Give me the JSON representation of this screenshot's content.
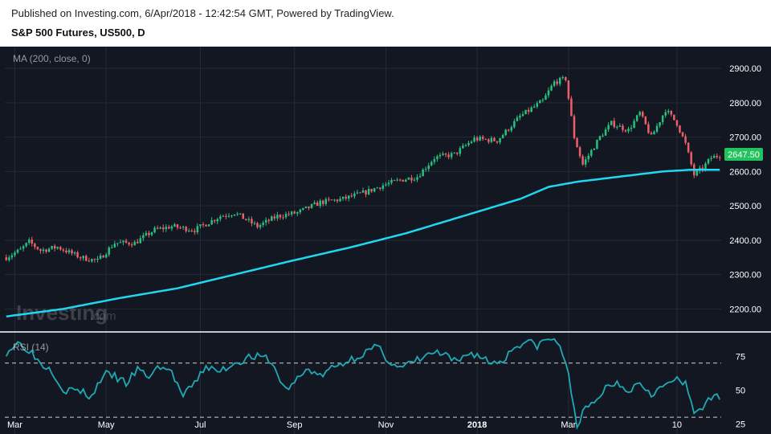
{
  "header": {
    "published": "Published on Investing.com, 6/Apr/2018 - 12:42:54 GMT, Powered by TradingView.",
    "symbol": "S&P 500 Futures, US500, D"
  },
  "watermark": {
    "brand": "Investing",
    "suffix": ".com"
  },
  "colors": {
    "background": "#131722",
    "up": "#26c281",
    "down": "#ef5f6b",
    "ma": "#21d7f0",
    "rsi": "#1fa9b5",
    "price_label_bg": "#22c35e",
    "axis_text": "#ffffff",
    "grid": "#252a36"
  },
  "chart_data": [
    {
      "type": "candlestick",
      "title": "S&P 500 Futures, US500, D",
      "indicator_label": "MA (200, close, 0)",
      "ylim": [
        2140,
        2940
      ],
      "y_ticks": [
        "2900.00",
        "2800.00",
        "2700.00",
        "2600.00",
        "2500.00",
        "2400.00",
        "2300.00",
        "2200.00"
      ],
      "x_ticks": [
        "Mar",
        "May",
        "Jul",
        "Sep",
        "Nov",
        "2018",
        "Mar",
        "10"
      ],
      "last_price": "2647.50",
      "price_anchors": [
        [
          0,
          2350
        ],
        [
          5,
          2372
        ],
        [
          8,
          2395
        ],
        [
          12,
          2370
        ],
        [
          18,
          2380
        ],
        [
          26,
          2350
        ],
        [
          32,
          2340
        ],
        [
          38,
          2392
        ],
        [
          45,
          2392
        ],
        [
          52,
          2430
        ],
        [
          58,
          2440
        ],
        [
          66,
          2430
        ],
        [
          75,
          2470
        ],
        [
          80,
          2480
        ],
        [
          88,
          2440
        ],
        [
          95,
          2470
        ],
        [
          102,
          2480
        ],
        [
          110,
          2510
        ],
        [
          118,
          2520
        ],
        [
          126,
          2540
        ],
        [
          132,
          2560
        ],
        [
          138,
          2575
        ],
        [
          144,
          2585
        ],
        [
          150,
          2640
        ],
        [
          157,
          2650
        ],
        [
          164,
          2695
        ],
        [
          172,
          2690
        ],
        [
          180,
          2760
        ],
        [
          188,
          2805
        ],
        [
          192,
          2860
        ],
        [
          196,
          2870
        ],
        [
          199,
          2700
        ],
        [
          202,
          2620
        ],
        [
          208,
          2700
        ],
        [
          212,
          2740
        ],
        [
          218,
          2720
        ],
        [
          222,
          2770
        ],
        [
          226,
          2700
        ],
        [
          231,
          2780
        ],
        [
          235,
          2740
        ],
        [
          238,
          2680
        ],
        [
          241,
          2590
        ],
        [
          244,
          2610
        ],
        [
          247,
          2640
        ],
        [
          250,
          2647
        ]
      ],
      "ma200": [
        [
          0,
          2178
        ],
        [
          20,
          2200
        ],
        [
          40,
          2232
        ],
        [
          60,
          2260
        ],
        [
          80,
          2300
        ],
        [
          100,
          2340
        ],
        [
          120,
          2378
        ],
        [
          140,
          2420
        ],
        [
          160,
          2470
        ],
        [
          170,
          2495
        ],
        [
          180,
          2520
        ],
        [
          190,
          2555
        ],
        [
          200,
          2570
        ],
        [
          210,
          2580
        ],
        [
          220,
          2590
        ],
        [
          230,
          2600
        ],
        [
          240,
          2605
        ],
        [
          250,
          2605
        ]
      ]
    },
    {
      "type": "line",
      "title": "RSI (14)",
      "ylim": [
        20,
        90
      ],
      "y_ticks": [
        "75",
        "50",
        "25"
      ],
      "reference_lines": [
        70,
        30
      ],
      "values": [
        [
          0,
          78
        ],
        [
          4,
          85
        ],
        [
          8,
          80
        ],
        [
          12,
          70
        ],
        [
          16,
          65
        ],
        [
          20,
          50
        ],
        [
          25,
          50
        ],
        [
          30,
          45
        ],
        [
          34,
          62
        ],
        [
          38,
          60
        ],
        [
          42,
          55
        ],
        [
          46,
          65
        ],
        [
          50,
          60
        ],
        [
          54,
          68
        ],
        [
          58,
          63
        ],
        [
          62,
          45
        ],
        [
          66,
          55
        ],
        [
          70,
          68
        ],
        [
          74,
          63
        ],
        [
          80,
          70
        ],
        [
          86,
          75
        ],
        [
          92,
          73
        ],
        [
          98,
          50
        ],
        [
          102,
          58
        ],
        [
          106,
          66
        ],
        [
          110,
          60
        ],
        [
          114,
          66
        ],
        [
          118,
          70
        ],
        [
          122,
          74
        ],
        [
          126,
          78
        ],
        [
          130,
          82
        ],
        [
          134,
          72
        ],
        [
          138,
          66
        ],
        [
          142,
          70
        ],
        [
          146,
          74
        ],
        [
          150,
          78
        ],
        [
          154,
          75
        ],
        [
          158,
          70
        ],
        [
          162,
          78
        ],
        [
          166,
          75
        ],
        [
          170,
          70
        ],
        [
          174,
          72
        ],
        [
          178,
          82
        ],
        [
          182,
          86
        ],
        [
          186,
          83
        ],
        [
          190,
          88
        ],
        [
          194,
          84
        ],
        [
          197,
          60
        ],
        [
          200,
          25
        ],
        [
          203,
          36
        ],
        [
          206,
          40
        ],
        [
          210,
          52
        ],
        [
          214,
          56
        ],
        [
          218,
          50
        ],
        [
          222,
          56
        ],
        [
          226,
          48
        ],
        [
          230,
          52
        ],
        [
          234,
          58
        ],
        [
          238,
          54
        ],
        [
          241,
          34
        ],
        [
          244,
          38
        ],
        [
          247,
          43
        ],
        [
          250,
          46
        ]
      ]
    }
  ]
}
